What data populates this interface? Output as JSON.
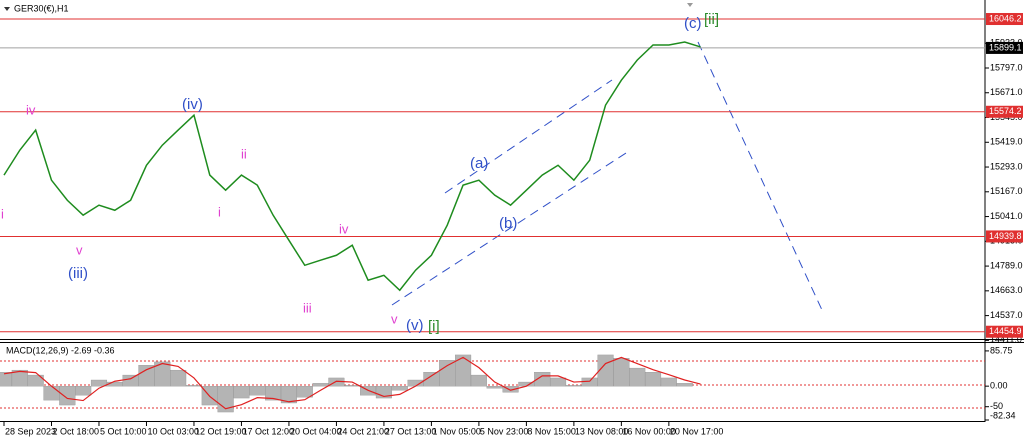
{
  "chart_data": [
    {
      "type": "line",
      "title": "GER30(€),H1",
      "categories": [
        "28 Sep 2023",
        null,
        null,
        "2 Oct 18:00",
        null,
        null,
        "5 Oct 10:00",
        null,
        null,
        "10 Oct 03:00",
        null,
        null,
        "12 Oct 19:00",
        null,
        null,
        "17 Oct 12:00",
        null,
        null,
        "20 Oct 04:00",
        null,
        null,
        "24 Oct 21:00",
        null,
        null,
        "27 Oct 13:00",
        null,
        null,
        "1 Nov 05:00",
        null,
        null,
        "5 Nov 23:00",
        null,
        null,
        "8 Nov 15:00",
        null,
        null,
        "13 Nov 08:00",
        null,
        null,
        "16 Nov 00:00",
        null,
        null,
        "20 Nov 17:00",
        null,
        null
      ],
      "series": [
        {
          "color": "#1e8c1e",
          "values": [
            15252,
            15379,
            15481,
            15226,
            15124,
            15048,
            15099,
            15073,
            15124,
            15302,
            15404,
            15481,
            15557,
            15252,
            15175,
            15252,
            15201,
            15048,
            14920,
            14793,
            14819,
            14844,
            14895,
            14717,
            14742,
            14666,
            14768,
            14844,
            14997,
            15201,
            15226,
            15150,
            15099,
            15175,
            15252,
            15302,
            15226,
            15328,
            15608,
            15735,
            15837,
            15914,
            15914,
            15929,
            15904
          ]
        }
      ],
      "ylim": [
        14423,
        16143
      ],
      "yticks": [
        {
          "value": 15923,
          "label": "15923.0"
        },
        {
          "value": 15797,
          "label": "15797.0"
        },
        {
          "value": 15671,
          "label": "15671.0"
        },
        {
          "value": 15545,
          "label": "15545.0"
        },
        {
          "value": 15419,
          "label": "15419.0"
        },
        {
          "value": 15293,
          "label": "15293.0"
        },
        {
          "value": 15167,
          "label": "15167.0"
        },
        {
          "value": 15041,
          "label": "15041.0"
        },
        {
          "value": 14915,
          "label": "14915.0"
        },
        {
          "value": 14789,
          "label": "14789.0"
        },
        {
          "value": 14663,
          "label": "14663.0"
        },
        {
          "value": 14537,
          "label": "14537.0"
        },
        {
          "value": 14411,
          "label": "14411.0"
        }
      ],
      "levels": [
        16046.2,
        15574.2,
        14939.8,
        14454.9
      ],
      "level_color": "#e03030",
      "current_price": 15899.1,
      "annotations": [
        "(c)",
        "[ii]",
        "iv",
        "(iv)",
        "ii",
        "i",
        "i",
        "v",
        "(iii)",
        "iv",
        "iii",
        "v",
        "(v)",
        "[i]",
        "(a)",
        "(b)"
      ]
    },
    {
      "type": "macd",
      "title": "MACD(12,26,9) -2.69 -0.36",
      "series": [
        {
          "color": "#b4b4b4",
          "values": [
            34,
            39,
            27,
            -34,
            -46,
            -22,
            15,
            10,
            27,
            51,
            59,
            39,
            2,
            -46,
            -63,
            -29,
            -22,
            -34,
            -41,
            -27,
            7,
            20,
            2,
            -22,
            -29,
            -10,
            15,
            34,
            63,
            76,
            27,
            -5,
            -15,
            10,
            34,
            20,
            2,
            20,
            76,
            68,
            44,
            34,
            20,
            7,
            0
          ]
        },
        {
          "color": "#e02020",
          "values": [
            30,
            36,
            33,
            0,
            -30,
            -35,
            -5,
            12,
            18,
            40,
            55,
            48,
            20,
            -25,
            -55,
            -45,
            -28,
            -30,
            -38,
            -33,
            -10,
            12,
            10,
            -10,
            -25,
            -20,
            0,
            25,
            50,
            70,
            45,
            10,
            -10,
            0,
            25,
            25,
            10,
            12,
            55,
            70,
            55,
            40,
            28,
            15,
            5
          ]
        }
      ],
      "ylim": [
        -82.34,
        105
      ],
      "yticks": [
        85.75,
        {
          "value": 0,
          "label": "0.00"
        },
        -50,
        -82.34
      ]
    }
  ]
}
